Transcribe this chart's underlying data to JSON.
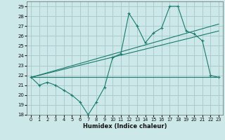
{
  "xlabel": "Humidex (Indice chaleur)",
  "ylabel": "",
  "xlim": [
    -0.5,
    23.5
  ],
  "ylim": [
    18,
    29.5
  ],
  "yticks": [
    18,
    19,
    20,
    21,
    22,
    23,
    24,
    25,
    26,
    27,
    28,
    29
  ],
  "xticks": [
    0,
    1,
    2,
    3,
    4,
    5,
    6,
    7,
    8,
    9,
    10,
    11,
    12,
    13,
    14,
    15,
    16,
    17,
    18,
    19,
    20,
    21,
    22,
    23
  ],
  "background_color": "#cce8e8",
  "grid_color": "#aacccc",
  "line_color": "#1a7a6e",
  "line1_x": [
    0,
    1,
    2,
    3,
    4,
    5,
    6,
    7,
    8,
    9,
    10,
    11,
    12,
    13,
    14,
    15,
    16,
    17,
    18,
    19,
    20,
    21,
    22,
    23
  ],
  "line1_y": [
    21.8,
    21.0,
    21.3,
    21.0,
    20.5,
    20.0,
    19.3,
    18.0,
    19.3,
    20.8,
    23.8,
    24.2,
    28.3,
    27.0,
    25.3,
    26.3,
    26.8,
    29.0,
    29.0,
    26.5,
    26.2,
    25.5,
    22.0,
    21.8
  ],
  "line2_x": [
    0,
    23
  ],
  "line2_y": [
    21.8,
    21.8
  ],
  "line3_x": [
    0,
    23
  ],
  "line3_y": [
    21.8,
    26.5
  ],
  "line4_x": [
    0,
    23
  ],
  "line4_y": [
    21.8,
    27.2
  ]
}
